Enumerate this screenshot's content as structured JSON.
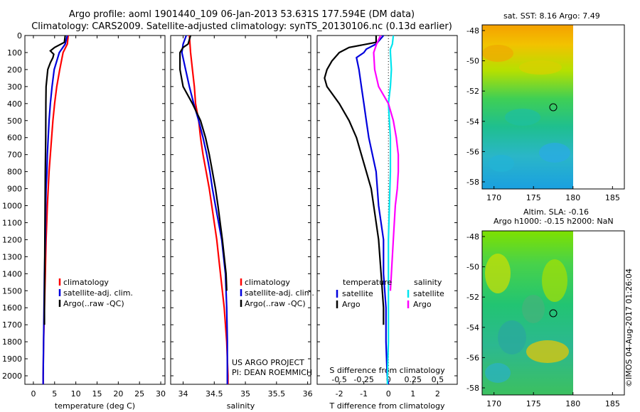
{
  "header": {
    "line1": "Argo profile: aoml 1901440_109 06-Jan-2013 53.631S 177.594E (DM data)",
    "line2": "Climatology: CARS2009. Satellite-adjusted climatology: synTS_20130106.nc (0.13d earlier)"
  },
  "sst_map": {
    "title": "sat. SST: 8.16 Argo: 7.49",
    "x_ticks": [
      "170",
      "175",
      "180",
      "185"
    ],
    "y_ticks": [
      "-48",
      "-50",
      "-52",
      "-54",
      "-56",
      "-58"
    ]
  },
  "sla_map": {
    "title1": "Altim. SLA: -0.16",
    "title2": "Argo h1000: -0.15 h2000: NaN",
    "x_ticks": [
      "170",
      "175",
      "180",
      "185"
    ],
    "y_ticks": [
      "-48",
      "-50",
      "-52",
      "-54",
      "-56",
      "-58"
    ]
  },
  "stamp": "©IMOS 04-Aug-2017 01:26:04",
  "colors": {
    "climatology": "#ff0000",
    "satellite": "#0000dd",
    "argo": "#000000",
    "satellite_salinity": "#00e5ee",
    "argo_salinity": "#ff00ff"
  },
  "chart_data": [
    {
      "type": "line",
      "name": "temperature",
      "xlabel": "temperature (deg C)",
      "x_ticks": [
        "0",
        "5",
        "10",
        "15",
        "20",
        "25",
        "30"
      ],
      "y_ticks": [
        "0",
        "100",
        "200",
        "300",
        "400",
        "500",
        "600",
        "700",
        "800",
        "900",
        "1000",
        "1100",
        "1200",
        "1300",
        "1400",
        "1500",
        "1600",
        "1700",
        "1800",
        "1900",
        "2000"
      ],
      "xlim": [
        -2,
        31
      ],
      "ylim": [
        2050,
        0
      ],
      "legend": [
        "climatology",
        "satellite-adj. clim.",
        "Argo(..raw -QC)"
      ],
      "series": [
        {
          "name": "climatology",
          "depth": [
            0,
            50,
            100,
            200,
            300,
            400,
            500,
            600,
            700,
            800,
            900,
            1000,
            1200,
            1400,
            1600,
            1800,
            2000,
            2050
          ],
          "values": [
            8.2,
            8.0,
            7.0,
            6.2,
            5.5,
            5.0,
            4.6,
            4.3,
            4.0,
            3.7,
            3.5,
            3.3,
            3.0,
            2.8,
            2.6,
            2.4,
            2.3,
            2.3
          ]
        },
        {
          "name": "satellite-adj. clim.",
          "depth": [
            0,
            50,
            100,
            200,
            300,
            400,
            500,
            600,
            700,
            800,
            900,
            1000,
            1200,
            1400,
            1600,
            1800,
            2000,
            2050
          ],
          "values": [
            8.0,
            7.5,
            6.1,
            4.9,
            4.4,
            4.0,
            3.7,
            3.5,
            3.3,
            3.2,
            3.0,
            2.9,
            2.8,
            2.6,
            2.5,
            2.4,
            2.3,
            2.3
          ]
        },
        {
          "name": "Argo(..raw -QC)",
          "depth": [
            0,
            40,
            70,
            90,
            110,
            130,
            160,
            200,
            300,
            400,
            600,
            800,
            1000,
            1200,
            1400,
            1600,
            1700
          ],
          "values": [
            7.5,
            7.3,
            5.0,
            4.0,
            4.8,
            4.6,
            4.0,
            3.4,
            3.0,
            2.95,
            2.9,
            2.8,
            2.75,
            2.7,
            2.65,
            2.6,
            2.6
          ]
        }
      ]
    },
    {
      "type": "line",
      "name": "salinity",
      "xlabel": "salinity",
      "x_ticks": [
        "34",
        "34.5",
        "35",
        "35.5",
        "36"
      ],
      "xlim": [
        33.8,
        36.05
      ],
      "ylim": [
        2050,
        0
      ],
      "legend": [
        "climatology",
        "satellite-adj. clim.",
        "Argo(..raw -QC)"
      ],
      "annotation": [
        "US ARGO PROJECT",
        "PI: DEAN ROEMMICH"
      ],
      "series": [
        {
          "name": "climatology",
          "depth": [
            0,
            100,
            200,
            300,
            400,
            500,
            600,
            700,
            800,
            900,
            1000,
            1200,
            1400,
            1600,
            1800,
            2000,
            2050
          ],
          "values": [
            34.1,
            34.12,
            34.15,
            34.18,
            34.2,
            34.25,
            34.28,
            34.32,
            34.37,
            34.42,
            34.46,
            34.54,
            34.6,
            34.66,
            34.7,
            34.72,
            34.72
          ]
        },
        {
          "name": "satellite-adj. clim.",
          "depth": [
            0,
            50,
            100,
            200,
            300,
            400,
            500,
            600,
            700,
            800,
            900,
            1000,
            1200,
            1400,
            1600,
            1800,
            2000,
            2050
          ],
          "values": [
            34.05,
            34.0,
            33.98,
            34.04,
            34.1,
            34.17,
            34.25,
            34.32,
            34.38,
            34.43,
            34.47,
            34.52,
            34.62,
            34.68,
            34.7,
            34.71,
            34.71,
            34.71
          ]
        },
        {
          "name": "Argo(..raw -QC)",
          "depth": [
            0,
            50,
            70,
            100,
            200,
            300,
            400,
            500,
            600,
            700,
            800,
            900,
            1000,
            1200,
            1400,
            1500
          ],
          "values": [
            34.12,
            34.08,
            34.0,
            33.95,
            33.95,
            34.0,
            34.15,
            34.28,
            34.36,
            34.42,
            34.47,
            34.52,
            34.56,
            34.63,
            34.69,
            34.7
          ]
        }
      ]
    },
    {
      "type": "line",
      "name": "difference from climatology",
      "xlabel": "T difference from climatology",
      "xlabel_top": "S difference from climatology",
      "x_ticks": [
        "-2",
        "-1",
        "0",
        "1",
        "2"
      ],
      "x_ticks_top": [
        "-0.5",
        "-0.25",
        "0",
        "0.25",
        "0.5"
      ],
      "xlim": [
        -2.9,
        2.8
      ],
      "ylim": [
        2050,
        0
      ],
      "legend_temperature": {
        "title": "temperature",
        "entries": [
          "satellite",
          "Argo"
        ]
      },
      "legend_salinity": {
        "title": "salinity",
        "entries": [
          "satellite",
          "Argo"
        ]
      },
      "series": [
        {
          "name": "temperature satellite",
          "depth": [
            0,
            50,
            80,
            100,
            130,
            200,
            300,
            400,
            500,
            600,
            800,
            1000,
            1200,
            1400,
            1600,
            1800,
            2000,
            2050
          ],
          "values": [
            -0.2,
            -0.5,
            -0.9,
            -1.0,
            -1.3,
            -1.2,
            -1.1,
            -1.0,
            -0.9,
            -0.8,
            -0.5,
            -0.4,
            -0.2,
            -0.2,
            -0.1,
            -0.1,
            -0.05,
            0
          ]
        },
        {
          "name": "temperature Argo",
          "depth": [
            0,
            40,
            70,
            100,
            150,
            200,
            250,
            300,
            400,
            500,
            600,
            700,
            800,
            900,
            1000,
            1200,
            1400,
            1600,
            1700
          ],
          "values": [
            -0.5,
            -0.5,
            -1.6,
            -2.0,
            -2.3,
            -2.5,
            -2.6,
            -2.5,
            -2.0,
            -1.6,
            -1.3,
            -1.1,
            -0.9,
            -0.7,
            -0.6,
            -0.4,
            -0.3,
            -0.2,
            -0.2
          ]
        },
        {
          "name": "salinity satellite",
          "depth": [
            0,
            50,
            80,
            100,
            200,
            300,
            400,
            500,
            600,
            800,
            1000,
            1200,
            1400,
            1600,
            1800,
            2000,
            2050
          ],
          "values": [
            0.05,
            0.04,
            0.02,
            0.02,
            0.03,
            0.02,
            0.0,
            0.01,
            0.02,
            0.02,
            0.01,
            0.0,
            0.0,
            0.0,
            0.0,
            -0.01,
            -0.01
          ]
        },
        {
          "name": "salinity Argo",
          "depth": [
            0,
            50,
            100,
            200,
            300,
            400,
            500,
            600,
            700,
            800,
            900,
            1000,
            1200,
            1400,
            1500
          ],
          "values": [
            -0.08,
            -0.12,
            -0.15,
            -0.14,
            -0.1,
            0.0,
            0.05,
            0.08,
            0.1,
            0.1,
            0.09,
            0.07,
            0.05,
            0.03,
            0.02
          ]
        }
      ]
    }
  ]
}
